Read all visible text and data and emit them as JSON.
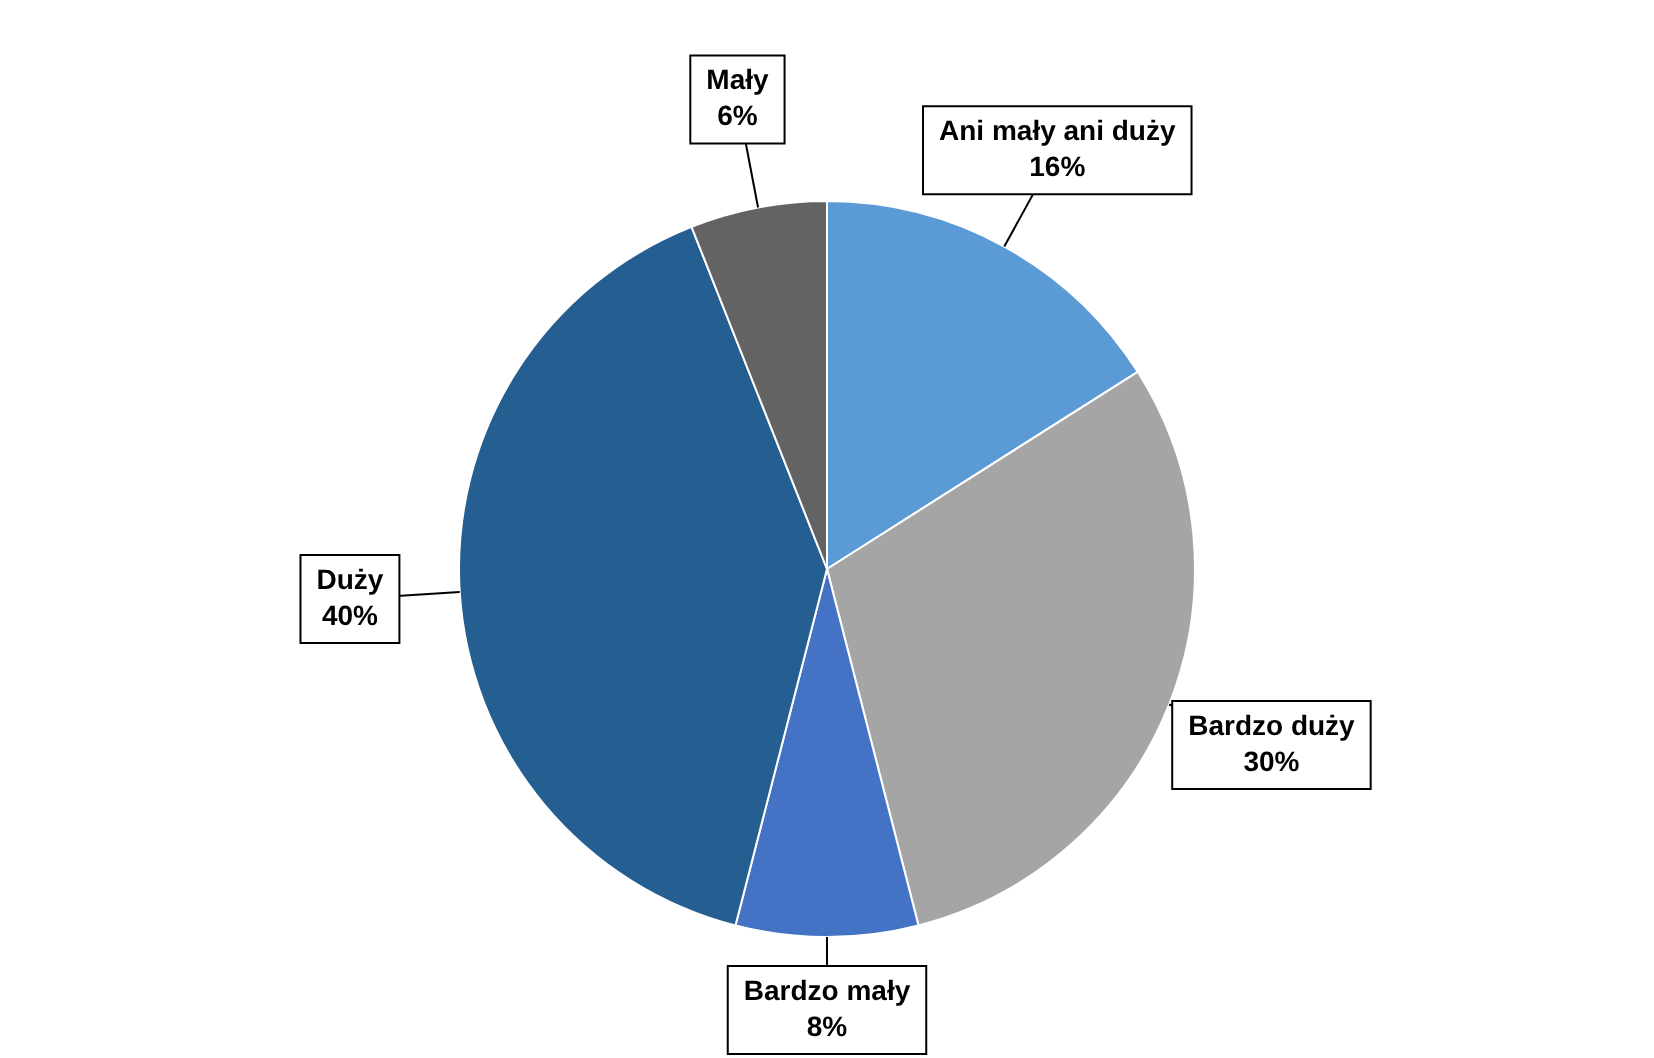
{
  "chart_data": {
    "type": "pie",
    "categories": [
      "Ani mały ani duży",
      "Bardzo duży",
      "Bardzo mały",
      "Duży",
      "Mały"
    ],
    "values": [
      16,
      30,
      8,
      40,
      6
    ],
    "value_labels": [
      "16%",
      "30%",
      "8%",
      "40%",
      "6%"
    ],
    "colors": [
      "#5b9bd5",
      "#a5a5a5",
      "#4472c4",
      "#255e91",
      "#636363"
    ],
    "legend": false
  }
}
